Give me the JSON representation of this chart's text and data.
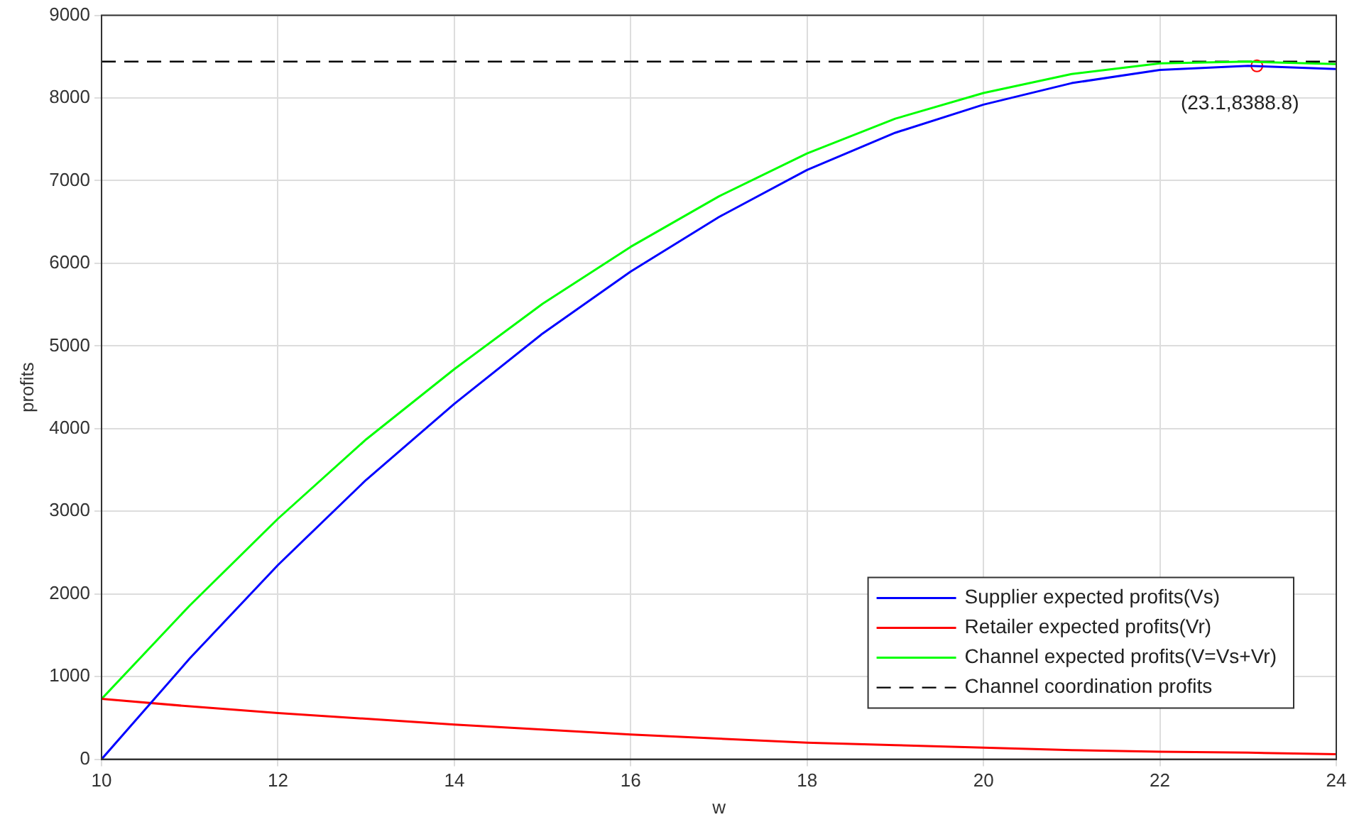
{
  "chart_data": {
    "type": "line",
    "xlabel": "w",
    "ylabel": "profits",
    "x": [
      10,
      11,
      12,
      13,
      14,
      15,
      16,
      17,
      18,
      19,
      20,
      21,
      22,
      23,
      24
    ],
    "series": [
      {
        "name": "Supplier expected profits(Vs)",
        "color": "#0000ff",
        "values": [
          0,
          1220,
          2350,
          3380,
          4300,
          5150,
          5900,
          6560,
          7130,
          7580,
          7920,
          8180,
          8340,
          8390,
          8350
        ]
      },
      {
        "name": "Retailer expected profits(Vr)",
        "color": "#ff0000",
        "values": [
          730,
          640,
          560,
          490,
          420,
          360,
          300,
          250,
          200,
          170,
          140,
          110,
          90,
          80,
          60
        ]
      },
      {
        "name": "Channel expected profits(V=Vs+Vr)",
        "color": "#00ff00",
        "values": [
          730,
          1860,
          2910,
          3870,
          4720,
          5510,
          6200,
          6810,
          7330,
          7750,
          8060,
          8290,
          8420,
          8440,
          8410
        ]
      },
      {
        "type": "scatter",
        "color": "#ff0000",
        "marker": "circle",
        "x": [
          23.1
        ],
        "values": [
          8388.8
        ]
      }
    ],
    "ref_lines": [
      {
        "axis": "y",
        "value": 8440,
        "label": "Channel coordination profits",
        "color": "#000000",
        "line_style": "dashed"
      }
    ],
    "annotations": [
      {
        "text": "(23.1,8388.8)",
        "x": 23.1,
        "y": 8388.8
      }
    ],
    "xlim": [
      10,
      24
    ],
    "xticks": [
      10,
      12,
      14,
      16,
      18,
      20,
      22,
      24
    ],
    "ylim": [
      0,
      9000
    ],
    "yticks": [
      0,
      1000,
      2000,
      3000,
      4000,
      5000,
      6000,
      7000,
      8000,
      9000
    ],
    "grid": true,
    "legend": "bottom right",
    "marker": "none",
    "line_style": "solid"
  }
}
